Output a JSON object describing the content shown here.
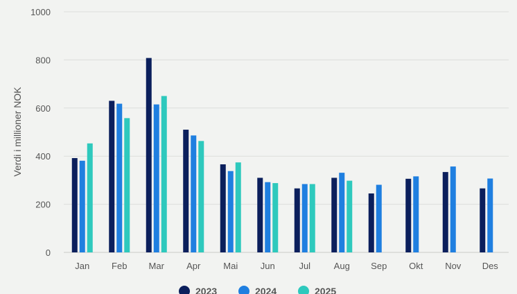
{
  "chart_data": {
    "type": "bar",
    "ylabel": "Verdi i millioner NOK",
    "ylim": [
      0,
      1000
    ],
    "yticks": [
      0,
      200,
      400,
      600,
      800,
      1000
    ],
    "grid": true,
    "legend_position": "bottom",
    "categories": [
      "Jan",
      "Feb",
      "Mar",
      "Apr",
      "Mai",
      "Jun",
      "Jul",
      "Aug",
      "Sep",
      "Okt",
      "Nov",
      "Des"
    ],
    "series": [
      {
        "name": "2023",
        "color": "#0b1f5c",
        "values": [
          392,
          630,
          808,
          510,
          366,
          310,
          266,
          310,
          245,
          306,
          334,
          266
        ]
      },
      {
        "name": "2024",
        "color": "#1f7fe0",
        "values": [
          381,
          618,
          615,
          486,
          338,
          292,
          284,
          331,
          281,
          316,
          357,
          307
        ]
      },
      {
        "name": "2025",
        "color": "#2ec9bd",
        "values": [
          453,
          558,
          650,
          463,
          374,
          288,
          284,
          298,
          null,
          null,
          null,
          null
        ]
      }
    ]
  }
}
